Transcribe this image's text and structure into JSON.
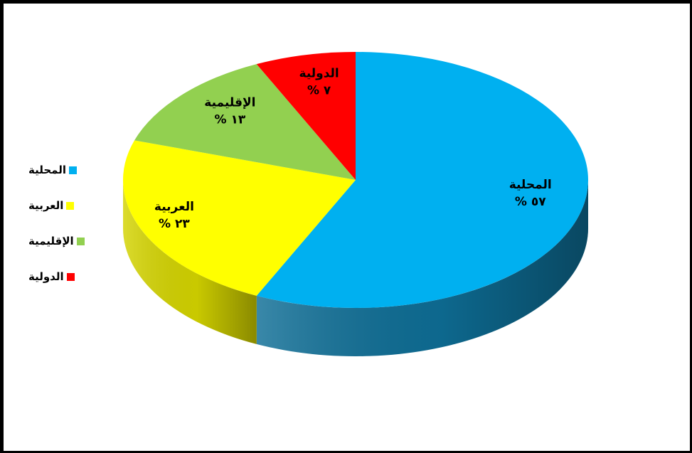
{
  "chart_data": {
    "type": "pie",
    "title": "",
    "categories": [
      "المحلية",
      "العربية",
      "الإقليمية",
      "الدولية"
    ],
    "values": [
      57,
      23,
      13,
      7
    ],
    "value_labels": [
      "% ٥٧",
      "% ٢٣",
      "% ١٣",
      "% ٧"
    ],
    "colors": [
      "#00B0F0",
      "#FFFF00",
      "#92D050",
      "#FF0000"
    ],
    "side_colors": [
      "#0E6E96",
      "#D4D400",
      "#6E9C3A",
      "#B00000"
    ],
    "legend_position": "left",
    "style": "3d-pie"
  }
}
